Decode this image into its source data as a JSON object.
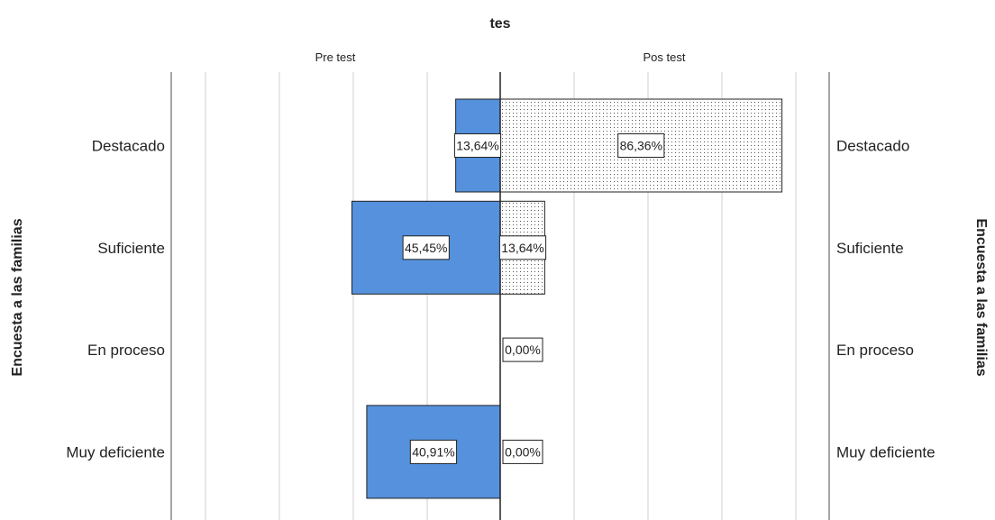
{
  "chart_data": {
    "type": "bar",
    "subtype": "population-pyramid",
    "title": "tes",
    "panels": [
      "Pre test",
      "Pos test"
    ],
    "ylabel_left": "Encuesta a las familias",
    "ylabel_right": "Encuesta a las familias",
    "categories": [
      "Destacado",
      "Suficiente",
      "En proceso",
      "Muy deficiente"
    ],
    "series": [
      {
        "name": "Pre test",
        "values": [
          13.64,
          45.45,
          0.0,
          40.91
        ],
        "labels": [
          "13,64%",
          "45,45%",
          "",
          "40,91%"
        ],
        "color": "#5591dc",
        "pattern": "solid"
      },
      {
        "name": "Pos test",
        "values": [
          86.36,
          13.64,
          0.0,
          0.0
        ],
        "labels": [
          "86,36%",
          "13,64%",
          "0,00%",
          "0,00%"
        ],
        "color": "#ffffff",
        "pattern": "dotted"
      }
    ],
    "xlim": [
      0,
      100
    ],
    "grid": true
  }
}
